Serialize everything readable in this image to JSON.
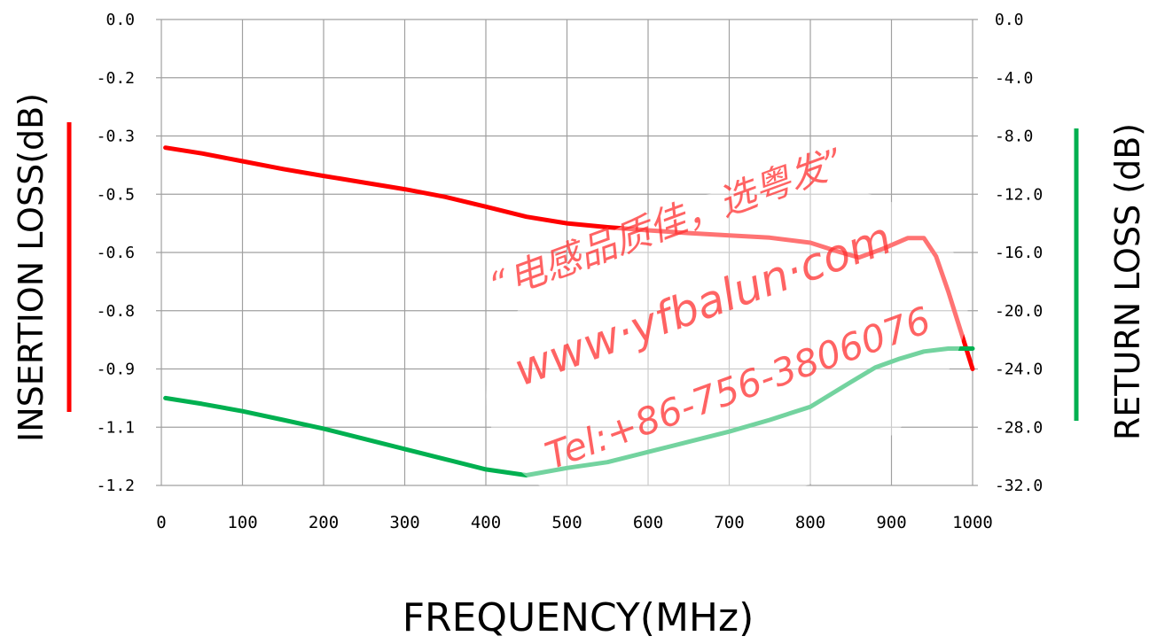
{
  "chart_data": {
    "type": "line",
    "title": "",
    "xlabel": "FREQUENCY(MHz)",
    "ylabel_left": "INSERTION  LOSS(dB)",
    "ylabel_right": "RETURN  LOSS (dB)",
    "xlim": [
      0,
      1000
    ],
    "x_ticks": [
      "0",
      "100",
      "200",
      "300",
      "400",
      "500",
      "600",
      "700",
      "800",
      "900",
      "1000"
    ],
    "y_left_ticks": [
      "0.0",
      "-0.2",
      "-0.3",
      "-0.5",
      "-0.6",
      "-0.8",
      "-0.9",
      "-1.1",
      "-1.2"
    ],
    "y_right_ticks": [
      "0.0",
      "-4.0",
      "-8.0",
      "-12.0",
      "-16.0",
      "-20.0",
      "-24.0",
      "-28.0",
      "-32.0"
    ],
    "ylim_left": [
      -1.2,
      0.0
    ],
    "ylim_right": [
      -32.0,
      0.0
    ],
    "grid": true,
    "series": [
      {
        "axis": "left",
        "color": "#ff0000",
        "x": [
          5,
          50,
          100,
          150,
          200,
          250,
          300,
          350,
          400,
          450,
          500,
          550,
          600,
          650,
          700,
          750,
          800,
          830,
          860,
          890,
          920,
          940,
          955,
          970,
          985,
          1000
        ],
        "y": [
          -0.33,
          -0.345,
          -0.365,
          -0.385,
          -0.403,
          -0.42,
          -0.437,
          -0.457,
          -0.482,
          -0.508,
          -0.525,
          -0.535,
          -0.543,
          -0.55,
          -0.556,
          -0.562,
          -0.575,
          -0.595,
          -0.613,
          -0.59,
          -0.563,
          -0.563,
          -0.61,
          -0.7,
          -0.8,
          -0.9
        ]
      },
      {
        "axis": "right",
        "color": "#00b050",
        "x": [
          5,
          50,
          100,
          150,
          200,
          250,
          300,
          350,
          400,
          450,
          500,
          550,
          600,
          650,
          700,
          750,
          800,
          850,
          880,
          910,
          940,
          970,
          1000
        ],
        "y": [
          -26.0,
          -26.4,
          -26.9,
          -27.5,
          -28.1,
          -28.8,
          -29.5,
          -30.2,
          -30.9,
          -31.3,
          -30.8,
          -30.4,
          -29.7,
          -29.0,
          -28.3,
          -27.5,
          -26.6,
          -24.9,
          -23.9,
          -23.3,
          -22.8,
          -22.6,
          -22.6
        ]
      }
    ]
  },
  "watermark": {
    "line1": "“电感品质佳，选粤发”",
    "line2": "www·yfbalun·com",
    "line3": "Tel:+86-756-3806076"
  },
  "colors": {
    "insertion": "#ff0000",
    "return": "#00b050",
    "grid": "#a0a0a0"
  }
}
